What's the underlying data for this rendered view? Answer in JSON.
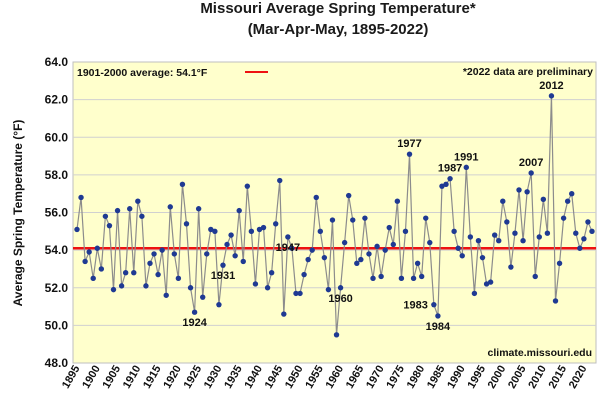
{
  "chart_data": {
    "type": "line",
    "title": "Missouri Average Spring Temperature*",
    "subtitle": "(Mar-Apr-May, 1895-2022)",
    "ylabel": "Average Spring Temperature (°F)",
    "xlabel": "",
    "ylim": [
      48,
      64
    ],
    "y_ticks": [
      "48.0",
      "50.0",
      "52.0",
      "54.0",
      "56.0",
      "58.0",
      "60.0",
      "62.0",
      "64.0"
    ],
    "x_ticks": [
      "1895",
      "1900",
      "1905",
      "1910",
      "1915",
      "1920",
      "1925",
      "1930",
      "1935",
      "1940",
      "1945",
      "1950",
      "1955",
      "1960",
      "1965",
      "1970",
      "1975",
      "1980",
      "1985",
      "1990",
      "1995",
      "2000",
      "2005",
      "2010",
      "2015",
      "2020"
    ],
    "grid": true,
    "background_color": "#ffffcc",
    "line_color": "#8c8c8c",
    "marker_color": "#1f3a93",
    "average_line_color": "#ee1111",
    "average": {
      "label": "1901-2000 average: 54.1°F",
      "value": 54.1
    },
    "footnote": "*2022 data are preliminary",
    "source": "climate.missouri.edu",
    "x": [
      1895,
      1896,
      1897,
      1898,
      1899,
      1900,
      1901,
      1902,
      1903,
      1904,
      1905,
      1906,
      1907,
      1908,
      1909,
      1910,
      1911,
      1912,
      1913,
      1914,
      1915,
      1916,
      1917,
      1918,
      1919,
      1920,
      1921,
      1922,
      1923,
      1924,
      1925,
      1926,
      1927,
      1928,
      1929,
      1930,
      1931,
      1932,
      1933,
      1934,
      1935,
      1936,
      1937,
      1938,
      1939,
      1940,
      1941,
      1942,
      1943,
      1944,
      1945,
      1946,
      1947,
      1948,
      1949,
      1950,
      1951,
      1952,
      1953,
      1954,
      1955,
      1956,
      1957,
      1958,
      1959,
      1960,
      1961,
      1962,
      1963,
      1964,
      1965,
      1966,
      1967,
      1968,
      1969,
      1970,
      1971,
      1972,
      1973,
      1974,
      1975,
      1976,
      1977,
      1978,
      1979,
      1980,
      1981,
      1982,
      1983,
      1984,
      1985,
      1986,
      1987,
      1988,
      1989,
      1990,
      1991,
      1992,
      1993,
      1994,
      1995,
      1996,
      1997,
      1998,
      1999,
      2000,
      2001,
      2002,
      2003,
      2004,
      2005,
      2006,
      2007,
      2008,
      2009,
      2010,
      2011,
      2012,
      2013,
      2014,
      2015,
      2016,
      2017,
      2018,
      2019,
      2020,
      2021,
      2022
    ],
    "y": [
      55.1,
      56.8,
      53.4,
      53.9,
      52.5,
      54.1,
      53.0,
      55.8,
      55.3,
      51.9,
      56.1,
      52.1,
      52.8,
      56.2,
      52.8,
      56.6,
      55.8,
      52.1,
      53.3,
      53.8,
      52.7,
      54.0,
      51.6,
      56.3,
      53.8,
      52.5,
      57.5,
      55.4,
      52.0,
      50.7,
      56.2,
      51.5,
      53.8,
      55.1,
      55.0,
      51.1,
      53.2,
      54.3,
      54.8,
      53.7,
      56.1,
      53.4,
      57.4,
      55.0,
      52.2,
      55.1,
      55.2,
      52.0,
      52.8,
      55.4,
      57.7,
      50.6,
      54.7,
      54.1,
      51.7,
      51.7,
      52.7,
      53.5,
      54.0,
      56.8,
      55.0,
      53.6,
      51.9,
      55.6,
      49.5,
      52.0,
      54.4,
      56.9,
      55.6,
      53.3,
      53.5,
      55.7,
      53.8,
      52.5,
      54.2,
      52.6,
      54.0,
      55.2,
      54.3,
      56.6,
      52.5,
      55.0,
      59.1,
      52.5,
      53.3,
      52.6,
      55.7,
      54.4,
      51.1,
      50.5,
      57.4,
      57.5,
      57.8,
      55.0,
      54.1,
      53.7,
      58.4,
      54.7,
      51.7,
      54.5,
      53.6,
      52.2,
      52.3,
      54.8,
      54.5,
      56.6,
      55.5,
      53.1,
      54.9,
      57.2,
      54.5,
      57.1,
      58.1,
      52.6,
      54.7,
      56.7,
      54.9,
      62.2,
      51.3,
      53.3,
      55.7,
      56.6,
      57.0,
      54.9,
      54.1,
      54.6,
      55.5,
      55.0
    ],
    "annotations": [
      {
        "year": 1924,
        "label": "1924",
        "pos": "below"
      },
      {
        "year": 1931,
        "label": "1931",
        "pos": "below"
      },
      {
        "year": 1947,
        "label": "1947",
        "pos": "below"
      },
      {
        "year": 1960,
        "label": "1960",
        "pos": "below"
      },
      {
        "year": 1977,
        "label": "1977",
        "pos": "above"
      },
      {
        "year": 1983,
        "label": "1983",
        "pos": "below-left"
      },
      {
        "year": 1984,
        "label": "1984",
        "pos": "below"
      },
      {
        "year": 1987,
        "label": "1987",
        "pos": "above"
      },
      {
        "year": 1991,
        "label": "1991",
        "pos": "above"
      },
      {
        "year": 2007,
        "label": "2007",
        "pos": "above"
      },
      {
        "year": 2012,
        "label": "2012",
        "pos": "above"
      }
    ]
  }
}
